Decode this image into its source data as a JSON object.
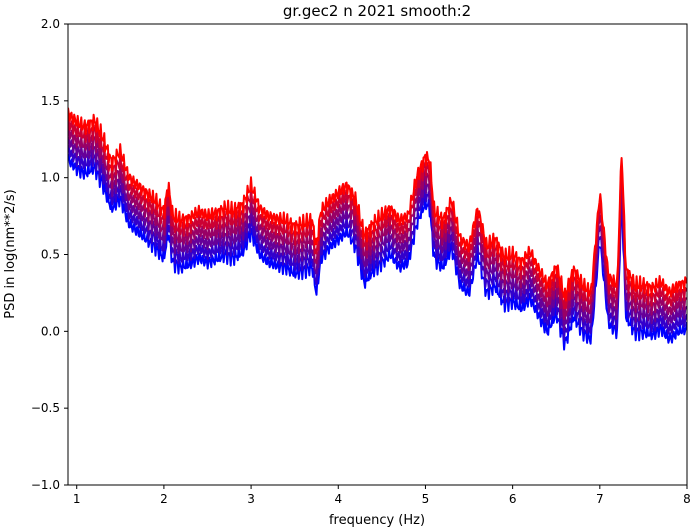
{
  "chart_data": {
    "type": "line",
    "title": "gr.gec2 n 2021 smooth:2",
    "xlabel": "frequency (Hz)",
    "ylabel": "PSD in log(nm**2/s)",
    "xlim": [
      0.9,
      8.0
    ],
    "ylim": [
      -1.0,
      2.0
    ],
    "xticks": [
      1,
      2,
      3,
      4,
      5,
      6,
      7,
      8
    ],
    "xtick_labels": [
      "1",
      "2",
      "3",
      "4",
      "5",
      "6",
      "7",
      "8"
    ],
    "yticks": [
      -1.0,
      -0.5,
      0.0,
      0.5,
      1.0,
      1.5,
      2.0
    ],
    "ytick_labels": [
      "−1.0",
      "−0.5",
      "0.0",
      "0.5",
      "1.0",
      "1.5",
      "2.0"
    ],
    "grid": false,
    "legend": "none",
    "base_curve": {
      "x": [
        0.9,
        1.0,
        1.1,
        1.2,
        1.3,
        1.4,
        1.5,
        1.6,
        1.7,
        1.8,
        1.9,
        2.0,
        2.05,
        2.1,
        2.2,
        2.3,
        2.4,
        2.5,
        2.6,
        2.7,
        2.8,
        2.9,
        3.0,
        3.1,
        3.2,
        3.3,
        3.4,
        3.5,
        3.6,
        3.7,
        3.75,
        3.8,
        3.9,
        4.0,
        4.1,
        4.2,
        4.3,
        4.4,
        4.5,
        4.6,
        4.7,
        4.8,
        4.9,
        5.0,
        5.05,
        5.1,
        5.2,
        5.3,
        5.4,
        5.5,
        5.6,
        5.7,
        5.8,
        5.9,
        6.0,
        6.1,
        6.2,
        6.3,
        6.4,
        6.5,
        6.6,
        6.7,
        6.8,
        6.9,
        7.0,
        7.1,
        7.2,
        7.25,
        7.3,
        7.4,
        7.5,
        7.6,
        7.7,
        7.8,
        7.9,
        8.0
      ],
      "y": [
        1.42,
        1.36,
        1.33,
        1.37,
        1.26,
        1.1,
        1.17,
        1.0,
        0.95,
        0.9,
        0.85,
        0.78,
        0.95,
        0.75,
        0.72,
        0.74,
        0.78,
        0.75,
        0.77,
        0.8,
        0.78,
        0.82,
        0.95,
        0.8,
        0.75,
        0.73,
        0.72,
        0.68,
        0.7,
        0.72,
        0.55,
        0.78,
        0.85,
        0.9,
        0.95,
        0.85,
        0.62,
        0.7,
        0.75,
        0.8,
        0.72,
        0.75,
        1.0,
        1.14,
        1.1,
        0.78,
        0.72,
        0.85,
        0.6,
        0.55,
        0.8,
        0.55,
        0.6,
        0.48,
        0.5,
        0.45,
        0.52,
        0.4,
        0.3,
        0.42,
        0.22,
        0.4,
        0.3,
        0.25,
        0.9,
        0.35,
        0.3,
        1.18,
        0.4,
        0.3,
        0.3,
        0.28,
        0.32,
        0.25,
        0.3,
        0.32
      ]
    },
    "series": [
      {
        "color": "#ff0000",
        "offset": 0.0
      },
      {
        "color": "#cc0033",
        "offset": -0.06
      },
      {
        "color": "#990066",
        "offset": -0.12
      },
      {
        "color": "#660099",
        "offset": -0.18
      },
      {
        "color": "#3300cc",
        "offset": -0.24
      },
      {
        "color": "#0000ff",
        "offset": -0.3
      }
    ]
  }
}
